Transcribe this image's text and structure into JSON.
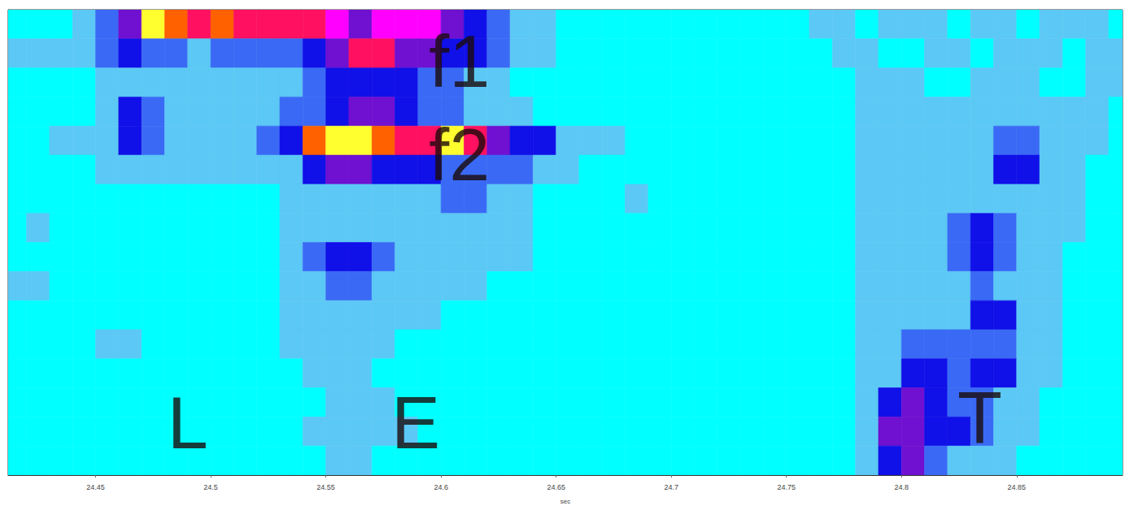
{
  "chart_data": {
    "type": "heatmap",
    "x_label": "sec",
    "xlim": [
      24.412,
      24.896
    ],
    "xticks": [
      24.45,
      24.5,
      24.55,
      24.6,
      24.65,
      24.7,
      24.75,
      24.8,
      24.85
    ],
    "ylim": [
      0,
      16
    ],
    "tick_labels": "x",
    "grid": false,
    "zlim": [
      0,
      8
    ],
    "x": [
      24.415,
      24.425,
      24.435,
      24.445,
      24.455,
      24.465,
      24.475,
      24.485,
      24.495,
      24.505,
      24.515,
      24.525,
      24.535,
      24.545,
      24.555,
      24.565,
      24.575,
      24.585,
      24.595,
      24.605,
      24.615,
      24.625,
      24.635,
      24.645,
      24.655,
      24.665,
      24.675,
      24.685,
      24.695,
      24.705,
      24.715,
      24.725,
      24.735,
      24.745,
      24.755,
      24.765,
      24.775,
      24.785,
      24.795,
      24.805,
      24.815,
      24.825,
      24.835,
      24.845,
      24.855,
      24.865,
      24.875,
      24.885,
      24.895
    ],
    "y": [
      15.5,
      14.5,
      13.5,
      12.5,
      11.5,
      10.5,
      9.5,
      8.5,
      7.5,
      6.5,
      5.5,
      4.5,
      3.5,
      2.5,
      1.5,
      0.5
    ],
    "cells": [
      [
        0,
        0,
        0,
        1,
        2,
        4,
        8,
        7,
        6,
        7,
        6,
        6,
        6,
        6,
        5,
        4,
        5,
        5,
        5,
        4,
        3,
        2,
        1,
        1,
        0,
        0,
        0,
        0,
        0,
        0,
        0,
        0,
        0,
        0,
        0,
        1,
        1,
        0,
        1,
        1,
        1,
        0,
        1,
        1,
        0,
        1,
        1,
        1,
        0
      ],
      [
        1,
        1,
        1,
        1,
        2,
        3,
        2,
        2,
        1,
        2,
        2,
        2,
        2,
        3,
        4,
        6,
        6,
        4,
        4,
        3,
        3,
        2,
        1,
        1,
        0,
        0,
        0,
        0,
        0,
        0,
        0,
        0,
        0,
        0,
        0,
        0,
        1,
        1,
        0,
        0,
        1,
        1,
        0,
        1,
        1,
        1,
        0,
        1,
        1
      ],
      [
        0,
        0,
        0,
        0,
        1,
        1,
        1,
        1,
        1,
        1,
        1,
        1,
        1,
        2,
        3,
        3,
        3,
        3,
        2,
        2,
        1,
        1,
        0,
        0,
        0,
        0,
        0,
        0,
        0,
        0,
        0,
        0,
        0,
        0,
        0,
        0,
        0,
        1,
        1,
        1,
        0,
        0,
        1,
        1,
        1,
        0,
        0,
        1,
        1
      ],
      [
        0,
        0,
        0,
        0,
        1,
        3,
        2,
        1,
        1,
        1,
        1,
        1,
        2,
        2,
        3,
        4,
        4,
        3,
        2,
        2,
        1,
        1,
        1,
        0,
        0,
        0,
        0,
        0,
        0,
        0,
        0,
        0,
        0,
        0,
        0,
        0,
        0,
        1,
        1,
        1,
        1,
        1,
        1,
        1,
        1,
        1,
        1,
        1,
        0
      ],
      [
        0,
        0,
        1,
        1,
        1,
        3,
        2,
        1,
        1,
        1,
        1,
        2,
        3,
        7,
        8,
        8,
        7,
        6,
        6,
        8,
        6,
        4,
        3,
        3,
        1,
        1,
        1,
        0,
        0,
        0,
        0,
        0,
        0,
        0,
        0,
        0,
        0,
        1,
        1,
        1,
        1,
        1,
        1,
        2,
        2,
        1,
        1,
        1,
        0
      ],
      [
        0,
        0,
        0,
        0,
        1,
        1,
        1,
        1,
        1,
        1,
        1,
        1,
        1,
        3,
        4,
        4,
        3,
        3,
        3,
        2,
        2,
        2,
        2,
        1,
        1,
        0,
        0,
        0,
        0,
        0,
        0,
        0,
        0,
        0,
        0,
        0,
        0,
        1,
        1,
        1,
        1,
        1,
        1,
        3,
        3,
        1,
        1,
        0,
        0
      ],
      [
        0,
        0,
        0,
        0,
        0,
        0,
        0,
        0,
        0,
        0,
        0,
        0,
        1,
        1,
        1,
        1,
        1,
        1,
        1,
        2,
        2,
        1,
        1,
        0,
        0,
        0,
        0,
        1,
        0,
        0,
        0,
        0,
        0,
        0,
        0,
        0,
        0,
        1,
        1,
        1,
        1,
        1,
        1,
        1,
        1,
        1,
        1,
        0,
        0
      ],
      [
        0,
        1,
        0,
        0,
        0,
        0,
        0,
        0,
        0,
        0,
        0,
        0,
        1,
        1,
        1,
        1,
        1,
        1,
        1,
        1,
        1,
        1,
        1,
        0,
        0,
        0,
        0,
        0,
        0,
        0,
        0,
        0,
        0,
        0,
        0,
        0,
        0,
        1,
        1,
        1,
        1,
        2,
        3,
        2,
        1,
        1,
        1,
        0,
        0
      ],
      [
        0,
        0,
        0,
        0,
        0,
        0,
        0,
        0,
        0,
        0,
        0,
        0,
        1,
        2,
        3,
        3,
        2,
        1,
        1,
        1,
        1,
        1,
        1,
        0,
        0,
        0,
        0,
        0,
        0,
        0,
        0,
        0,
        0,
        0,
        0,
        0,
        0,
        1,
        1,
        1,
        1,
        2,
        3,
        2,
        1,
        1,
        0,
        0,
        0
      ],
      [
        1,
        1,
        0,
        0,
        0,
        0,
        0,
        0,
        0,
        0,
        0,
        0,
        1,
        1,
        2,
        2,
        1,
        1,
        1,
        1,
        1,
        0,
        0,
        0,
        0,
        0,
        0,
        0,
        0,
        0,
        0,
        0,
        0,
        0,
        0,
        0,
        0,
        1,
        1,
        1,
        1,
        1,
        2,
        1,
        1,
        1,
        0,
        0,
        0
      ],
      [
        0,
        0,
        0,
        0,
        0,
        0,
        0,
        0,
        0,
        0,
        0,
        0,
        1,
        1,
        1,
        1,
        1,
        1,
        1,
        0,
        0,
        0,
        0,
        0,
        0,
        0,
        0,
        0,
        0,
        0,
        0,
        0,
        0,
        0,
        0,
        0,
        0,
        1,
        1,
        1,
        1,
        1,
        3,
        3,
        1,
        1,
        0,
        0,
        0
      ],
      [
        0,
        0,
        0,
        0,
        1,
        1,
        0,
        0,
        0,
        0,
        0,
        0,
        1,
        1,
        1,
        1,
        1,
        0,
        0,
        0,
        0,
        0,
        0,
        0,
        0,
        0,
        0,
        0,
        0,
        0,
        0,
        0,
        0,
        0,
        0,
        0,
        0,
        1,
        1,
        2,
        2,
        2,
        2,
        2,
        1,
        1,
        0,
        0,
        0
      ],
      [
        0,
        0,
        0,
        0,
        0,
        0,
        0,
        0,
        0,
        0,
        0,
        0,
        0,
        1,
        1,
        1,
        0,
        0,
        0,
        0,
        0,
        0,
        0,
        0,
        0,
        0,
        0,
        0,
        0,
        0,
        0,
        0,
        0,
        0,
        0,
        0,
        0,
        1,
        1,
        3,
        3,
        2,
        3,
        3,
        1,
        1,
        0,
        0,
        0
      ],
      [
        0,
        0,
        0,
        0,
        0,
        0,
        0,
        0,
        0,
        0,
        0,
        0,
        0,
        0,
        1,
        1,
        1,
        0,
        0,
        0,
        0,
        0,
        0,
        0,
        0,
        0,
        0,
        0,
        0,
        0,
        0,
        0,
        0,
        0,
        0,
        0,
        0,
        1,
        3,
        4,
        3,
        2,
        2,
        1,
        1,
        0,
        0,
        0,
        0
      ],
      [
        0,
        0,
        0,
        0,
        0,
        0,
        0,
        0,
        0,
        0,
        0,
        0,
        0,
        1,
        1,
        1,
        1,
        1,
        0,
        0,
        0,
        0,
        0,
        0,
        0,
        0,
        0,
        0,
        0,
        0,
        0,
        0,
        0,
        0,
        0,
        0,
        0,
        1,
        4,
        4,
        3,
        3,
        2,
        1,
        1,
        0,
        0,
        0,
        0
      ],
      [
        0,
        0,
        0,
        0,
        0,
        0,
        0,
        0,
        0,
        0,
        0,
        0,
        0,
        0,
        1,
        1,
        0,
        0,
        0,
        0,
        0,
        0,
        0,
        0,
        0,
        0,
        0,
        0,
        0,
        0,
        0,
        0,
        0,
        0,
        0,
        0,
        0,
        1,
        3,
        4,
        2,
        1,
        1,
        1,
        0,
        0,
        0,
        0,
        0
      ]
    ],
    "annotations": [
      {
        "text": "f1",
        "x": 24.608,
        "y": 14.2
      },
      {
        "text": "f2",
        "x": 24.608,
        "y": 11.0
      },
      {
        "text": "L",
        "x": 24.49,
        "y": 1.8
      },
      {
        "text": "E",
        "x": 24.589,
        "y": 1.8
      },
      {
        "text": "T",
        "x": 24.834,
        "y": 1.95
      }
    ]
  }
}
